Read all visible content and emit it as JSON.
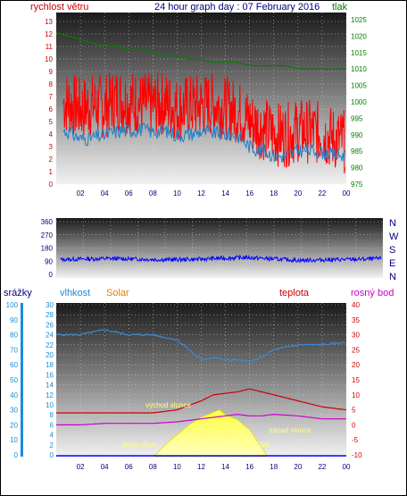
{
  "header": {
    "left_label": "rychlost větru",
    "title": "24 hour graph day : 07 February 2016",
    "right_label": "tlak"
  },
  "panel2": {
    "compass": [
      "N",
      "W",
      "S",
      "E",
      "N"
    ]
  },
  "panel3": {
    "label_rain": "srážky",
    "label_humidity": "vlhkost",
    "label_solar": "Solar",
    "label_temp": "teplota",
    "label_dew": "rosný bod",
    "annotations": {
      "sunrise": "východ slunce",
      "sunset": "západ slunce",
      "moonrise": "Moon Rise",
      "moonset": "Moon Set"
    }
  },
  "colors": {
    "wind": "#ff0000",
    "gust_line": "#1e7fc8",
    "pressure": "#008000",
    "direction": "#0000ff",
    "humidity": "#3a8ad8",
    "temperature": "#cc0000",
    "dew": "#cc00cc",
    "solar": "#ffff00"
  },
  "chart_data": [
    {
      "type": "line",
      "title": "24 hour graph day : 07 February 2016",
      "x_ticks": [
        "02",
        "04",
        "06",
        "08",
        "10",
        "12",
        "14",
        "16",
        "18",
        "20",
        "22",
        "00"
      ],
      "y_left_label": "rychlost větru",
      "y_left_ticks": [
        0,
        1,
        2,
        3,
        4,
        5,
        6,
        7,
        8,
        9,
        10,
        11,
        12,
        13
      ],
      "y_left_range": [
        0,
        13
      ],
      "y_right_label": "tlak",
      "y_right_ticks": [
        975,
        980,
        985,
        990,
        995,
        1000,
        1005,
        1010,
        1015,
        1020,
        1025
      ],
      "y_right_range": [
        975,
        1025
      ],
      "grid": true,
      "series": [
        {
          "name": "rychlost větru",
          "axis": "left",
          "hours": [
            1,
            2,
            3,
            4,
            5,
            6,
            7,
            8,
            9,
            10,
            11,
            12,
            13,
            14,
            15,
            16,
            17,
            18,
            19,
            20,
            21,
            22,
            23,
            24
          ],
          "values": [
            6.5,
            6.0,
            6.3,
            6.2,
            6.8,
            6.6,
            6.4,
            6.3,
            6.5,
            6.0,
            6.2,
            6.3,
            6.4,
            6.1,
            5.8,
            5.0,
            4.5,
            4.0,
            3.9,
            4.3,
            4.2,
            4.0,
            3.6,
            3.4
          ]
        },
        {
          "axis": "left",
          "hours": [
            1,
            2,
            3,
            4,
            5,
            6,
            7,
            8,
            9,
            10,
            11,
            12,
            13,
            14,
            15,
            16,
            17,
            18,
            19,
            20,
            21,
            22,
            23,
            24
          ],
          "values": [
            4.2,
            3.6,
            3.7,
            3.9,
            4.2,
            4.3,
            4.4,
            4.2,
            4.3,
            3.9,
            4.0,
            4.2,
            4.1,
            4.0,
            3.9,
            3.0,
            2.7,
            2.3,
            2.2,
            2.7,
            2.7,
            2.6,
            2.3,
            2.3
          ]
        },
        {
          "name": "tlak",
          "axis": "right",
          "hours": [
            0,
            1,
            2,
            3,
            4,
            5,
            6,
            7,
            8,
            9,
            10,
            11,
            12,
            13,
            14,
            15,
            16,
            17,
            18,
            19,
            20,
            21,
            22,
            23,
            24
          ],
          "values": [
            1021,
            1020,
            1019,
            1018,
            1017,
            1017,
            1016,
            1016,
            1015,
            1014,
            1014,
            1013,
            1013,
            1012,
            1012,
            1012,
            1011,
            1011,
            1011,
            1011,
            1010,
            1010,
            1010,
            1010,
            1010
          ]
        }
      ]
    },
    {
      "type": "line",
      "x_ticks": [],
      "y_ticks": [
        0,
        90,
        180,
        270,
        360
      ],
      "y_range": [
        0,
        360
      ],
      "y_right_ticks": [
        "N",
        "W",
        "S",
        "E",
        "N"
      ],
      "grid": true,
      "series": [
        {
          "axis": "left",
          "hours": [
            0,
            2,
            4,
            6,
            8,
            10,
            12,
            14,
            16,
            18,
            20,
            22,
            24
          ],
          "values": [
            100,
            105,
            108,
            104,
            100,
            102,
            110,
            115,
            105,
            95,
            100,
            102,
            108
          ]
        }
      ]
    },
    {
      "type": "line",
      "x_ticks": [
        "02",
        "04",
        "06",
        "08",
        "10",
        "12",
        "14",
        "16",
        "18",
        "20",
        "22",
        "00"
      ],
      "y_rain_label": "srážky",
      "y_rain_ticks": [
        0,
        10,
        20,
        30,
        40,
        50,
        60,
        70,
        80,
        90,
        100
      ],
      "y_humidity_label": "vlhkost",
      "y_humidity_ticks": [
        0,
        2,
        4,
        6,
        8,
        10,
        12,
        14,
        16,
        18,
        20,
        22,
        24,
        26,
        28,
        30
      ],
      "y_humidity_range": [
        0,
        30
      ],
      "y_temp_label": "teplota",
      "y_temp_ticks": [
        -10,
        -5,
        0,
        5,
        10,
        15,
        20,
        25,
        30,
        35,
        40
      ],
      "y_temp_range": [
        -10,
        40
      ],
      "grid": true,
      "series": [
        {
          "name": "vlhkost",
          "axis": "humidity",
          "hours": [
            0,
            2,
            4,
            6,
            8,
            10,
            12,
            13,
            14,
            15,
            16,
            17,
            18,
            20,
            22,
            24
          ],
          "values": [
            24,
            24,
            25,
            24,
            24,
            23,
            19,
            19.5,
            19,
            19,
            18.5,
            19.5,
            21,
            22,
            22,
            22.5
          ]
        },
        {
          "name": "teplota",
          "axis": "temp",
          "hours": [
            0,
            2,
            4,
            6,
            8,
            10,
            12,
            13,
            14,
            15,
            16,
            17,
            18,
            20,
            22,
            24
          ],
          "values": [
            4,
            4,
            4,
            4,
            4,
            5,
            8,
            10,
            10.5,
            11,
            12,
            11,
            10,
            8,
            6,
            5
          ]
        },
        {
          "name": "rosný bod",
          "axis": "temp",
          "hours": [
            0,
            2,
            4,
            6,
            8,
            10,
            12,
            14,
            15,
            16,
            17,
            18,
            20,
            22,
            24
          ],
          "values": [
            0,
            0,
            0.5,
            0.5,
            0.5,
            1,
            2,
            3,
            3.5,
            3,
            3,
            3.5,
            3,
            2,
            2
          ]
        },
        {
          "name": "Solar",
          "axis": "humidity",
          "hours": [
            8.2,
            9,
            10,
            11,
            12,
            13,
            13.5,
            14,
            15,
            16,
            17.4
          ],
          "values": [
            0,
            2,
            4,
            6,
            7.5,
            8.5,
            9,
            8,
            7,
            5,
            0
          ]
        }
      ],
      "annotations": [
        {
          "text": "východ slunce",
          "hour": 7.8
        },
        {
          "text": "západ slunce",
          "hour": 17.5
        },
        {
          "text": "Moon Rise",
          "hour": 5.7
        },
        {
          "text": "Moon Set",
          "hour": 15.3
        }
      ]
    }
  ]
}
